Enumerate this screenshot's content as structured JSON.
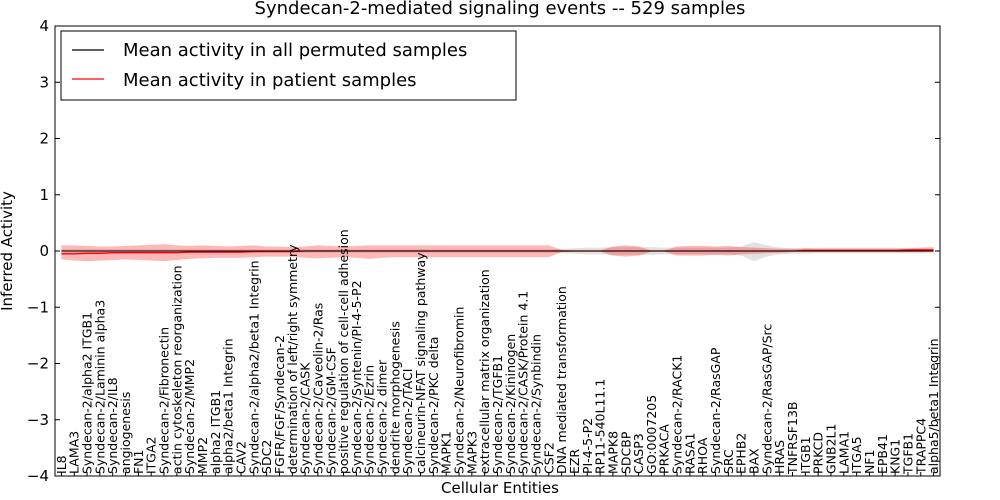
{
  "chart_data": {
    "type": "line",
    "title": "Syndecan-2-mediated signaling events -- 529 samples",
    "xlabel": "Cellular Entities",
    "ylabel": "Inferred Activity",
    "ylim": [
      -4,
      4
    ],
    "yticks": [
      -4,
      -3,
      -2,
      -1,
      0,
      1,
      2,
      3,
      4
    ],
    "grid": false,
    "legend_position": "top-left",
    "categories": [
      "IL8",
      "LAMA3",
      "Syndecan-2/alpha2 ITGB1",
      "Syndecan-2/Laminin alpha3",
      "Syndecan-2/IL8",
      "angiogenesis",
      "FN1",
      "ITGA2",
      "Syndecan-2/Fibronectin",
      "actin cytoskeleton reorganization",
      "Syndecan-2/MMP2",
      "MMP2",
      "alpha2 ITGB1",
      "alpha2/beta1 Integrin",
      "CAV2",
      "Syndecan-2/alpha2/beta1 Integrin",
      "SDC2",
      "FGFR/FGF/Syndecan-2",
      "determination of left/right symmetry",
      "Syndecan-2/CASK",
      "Syndecan-2/Caveolin-2/Ras",
      "Syndecan-2/GM-CSF",
      "positive regulation of cell-cell adhesion",
      "Syndecan-2/Syntenin/PI-4-5-P2",
      "Syndecan-2/Ezrin",
      "Syndecan-2 dimer",
      "dendrite morphogenesis",
      "Syndecan-2/TACI",
      "calcineurin-NFAT signaling pathway",
      "Syndecan-2/PKC delta",
      "MAPK1",
      "Syndecan-2/Neurofibromin",
      "MAPK3",
      "extracellular matrix organization",
      "Syndecan-2/TGFB1",
      "Syndecan-2/Kininogen",
      "Syndecan-2/CASK/Protein 4.1",
      "Syndecan-2/Synbindin",
      "CSF2",
      "DNA mediated transformation",
      "EZR",
      "PI-4-5-P2",
      "RP11-540L11.1",
      "MAPK8",
      "SDCBP",
      "CASP3",
      "GO:0007205",
      "PRKACA",
      "Syndecan-2/RACK1",
      "RASA1",
      "RHOA",
      "Syndecan-2/RasGAP",
      "SRC",
      "EPHB2",
      "BAX",
      "Syndecan-2/RasGAP/Src",
      "HRAS",
      "TNFRSF13B",
      "ITGB1",
      "PRKCD",
      "GNB2L1",
      "LAMA1",
      "ITGA5",
      "NF1",
      "EPB41",
      "KNG1",
      "TGFB1",
      "TRAPPC4",
      "alpha5/beta1 Integrin"
    ],
    "series": [
      {
        "name": "Mean activity in all permuted samples",
        "color": "#000000",
        "values": [
          0.0,
          0.0,
          0.0,
          0.0,
          0.0,
          0.0,
          0.0,
          0.0,
          0.0,
          0.0,
          0.0,
          0.0,
          0.0,
          0.0,
          0.0,
          0.0,
          0.0,
          0.0,
          0.0,
          0.0,
          0.0,
          0.0,
          0.0,
          0.0,
          0.0,
          0.0,
          0.0,
          0.0,
          0.0,
          0.0,
          0.0,
          0.0,
          0.0,
          0.0,
          0.0,
          0.0,
          0.0,
          0.0,
          0.0,
          0.0,
          0.0,
          0.0,
          0.0,
          0.0,
          0.0,
          0.0,
          0.0,
          0.0,
          0.0,
          0.0,
          0.0,
          0.0,
          0.0,
          0.0,
          0.0,
          0.0,
          0.0,
          0.0,
          0.0,
          0.0,
          0.0,
          0.0,
          0.0,
          0.0,
          0.0,
          0.0,
          0.0,
          0.0,
          0.0
        ],
        "band_upper": [
          0.03,
          0.03,
          0.03,
          0.03,
          0.03,
          0.03,
          0.03,
          0.03,
          0.03,
          0.03,
          0.03,
          0.03,
          0.03,
          0.03,
          0.03,
          0.03,
          0.03,
          0.03,
          0.03,
          0.03,
          0.03,
          0.03,
          0.03,
          0.03,
          0.03,
          0.03,
          0.03,
          0.03,
          0.03,
          0.03,
          0.03,
          0.03,
          0.03,
          0.03,
          0.03,
          0.03,
          0.03,
          0.03,
          0.03,
          0.04,
          0.05,
          0.06,
          0.06,
          0.07,
          0.07,
          0.07,
          0.07,
          0.06,
          0.06,
          0.06,
          0.06,
          0.06,
          0.06,
          0.08,
          0.16,
          0.1,
          0.06,
          0.05,
          0.05,
          0.04,
          0.04,
          0.04,
          0.04,
          0.04,
          0.04,
          0.04,
          0.04,
          0.04,
          0.04
        ],
        "band_lower": [
          -0.03,
          -0.03,
          -0.03,
          -0.03,
          -0.03,
          -0.03,
          -0.03,
          -0.03,
          -0.03,
          -0.03,
          -0.03,
          -0.03,
          -0.03,
          -0.03,
          -0.03,
          -0.03,
          -0.03,
          -0.03,
          -0.03,
          -0.03,
          -0.03,
          -0.03,
          -0.03,
          -0.03,
          -0.03,
          -0.03,
          -0.03,
          -0.03,
          -0.03,
          -0.03,
          -0.03,
          -0.03,
          -0.03,
          -0.03,
          -0.03,
          -0.03,
          -0.03,
          -0.03,
          -0.03,
          -0.04,
          -0.05,
          -0.06,
          -0.06,
          -0.07,
          -0.07,
          -0.07,
          -0.07,
          -0.06,
          -0.06,
          -0.06,
          -0.06,
          -0.06,
          -0.06,
          -0.08,
          -0.18,
          -0.1,
          -0.06,
          -0.05,
          -0.05,
          -0.04,
          -0.04,
          -0.04,
          -0.04,
          -0.04,
          -0.04,
          -0.04,
          -0.04,
          -0.04,
          -0.04
        ]
      },
      {
        "name": "Mean activity in patient samples",
        "color": "#ff0000",
        "values": [
          -0.05,
          -0.05,
          -0.04,
          -0.04,
          -0.03,
          -0.03,
          -0.03,
          -0.03,
          -0.03,
          -0.03,
          -0.02,
          -0.02,
          -0.02,
          -0.02,
          -0.02,
          -0.01,
          -0.01,
          -0.01,
          -0.01,
          0.0,
          0.0,
          0.0,
          0.0,
          0.0,
          0.0,
          0.0,
          0.0,
          0.0,
          0.0,
          0.0,
          0.0,
          0.0,
          0.0,
          0.0,
          0.0,
          0.0,
          0.0,
          0.0,
          0.0,
          0.0,
          0.0,
          0.0,
          0.0,
          0.0,
          0.0,
          0.0,
          0.0,
          0.0,
          0.0,
          0.0,
          0.0,
          0.0,
          0.0,
          0.0,
          0.0,
          0.0,
          0.0,
          0.0,
          0.01,
          0.01,
          0.01,
          0.01,
          0.01,
          0.01,
          0.01,
          0.01,
          0.02,
          0.02,
          0.02
        ],
        "band_upper": [
          0.1,
          0.1,
          0.09,
          0.08,
          0.08,
          0.09,
          0.1,
          0.11,
          0.12,
          0.1,
          0.09,
          0.1,
          0.09,
          0.08,
          0.09,
          0.1,
          0.08,
          0.08,
          0.07,
          0.08,
          0.1,
          0.09,
          0.08,
          0.09,
          0.1,
          0.1,
          0.1,
          0.1,
          0.1,
          0.1,
          0.1,
          0.1,
          0.1,
          0.1,
          0.1,
          0.1,
          0.1,
          0.1,
          0.1,
          0.02,
          0.01,
          0.01,
          0.01,
          0.08,
          0.1,
          0.08,
          0.01,
          0.01,
          0.08,
          0.09,
          0.09,
          0.08,
          0.09,
          0.07,
          0.06,
          0.05,
          0.04,
          0.04,
          0.05,
          0.05,
          0.05,
          0.05,
          0.05,
          0.05,
          0.05,
          0.05,
          0.05,
          0.06,
          0.07
        ],
        "band_lower": [
          -0.15,
          -0.17,
          -0.18,
          -0.17,
          -0.16,
          -0.15,
          -0.16,
          -0.17,
          -0.18,
          -0.16,
          -0.14,
          -0.13,
          -0.12,
          -0.12,
          -0.12,
          -0.11,
          -0.1,
          -0.1,
          -0.1,
          -0.12,
          -0.13,
          -0.12,
          -0.11,
          -0.12,
          -0.14,
          -0.12,
          -0.11,
          -0.11,
          -0.11,
          -0.11,
          -0.11,
          -0.11,
          -0.11,
          -0.11,
          -0.11,
          -0.11,
          -0.11,
          -0.11,
          -0.11,
          -0.02,
          -0.01,
          -0.01,
          -0.01,
          -0.08,
          -0.1,
          -0.08,
          -0.01,
          -0.01,
          -0.08,
          -0.08,
          -0.08,
          -0.07,
          -0.08,
          -0.06,
          -0.05,
          -0.04,
          -0.03,
          -0.02,
          -0.02,
          -0.02,
          -0.02,
          -0.02,
          -0.02,
          -0.02,
          -0.02,
          -0.02,
          -0.02,
          -0.02,
          -0.01
        ]
      }
    ]
  }
}
